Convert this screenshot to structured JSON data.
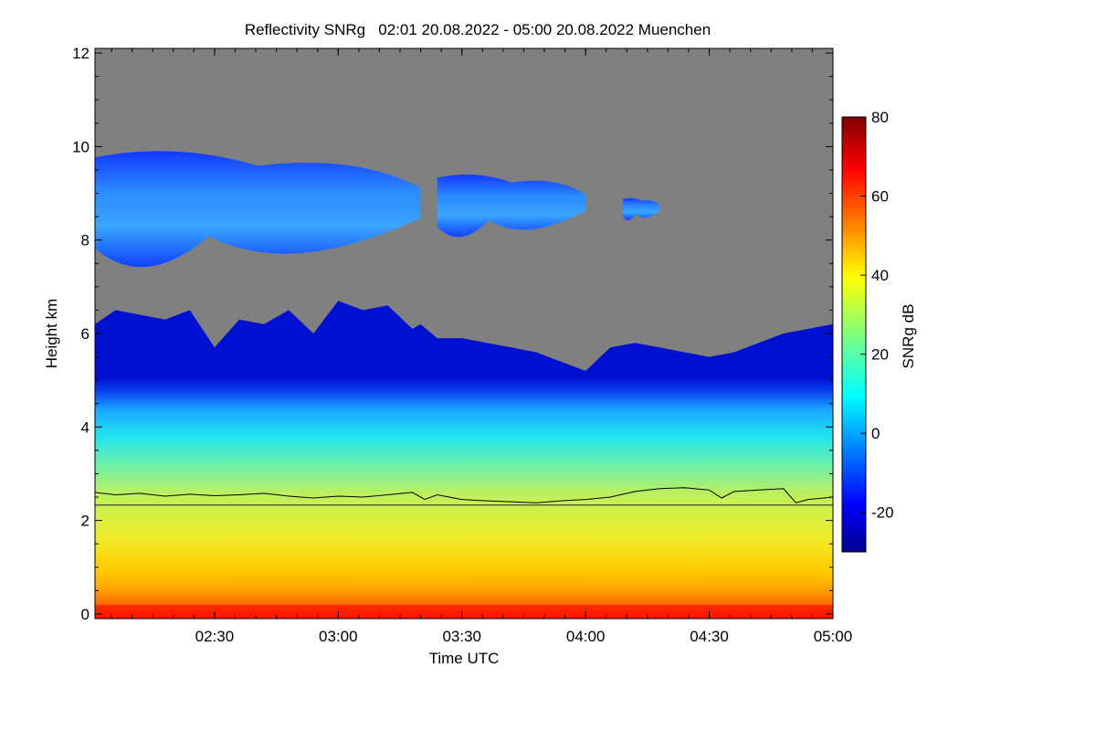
{
  "chart_data": {
    "type": "heatmap",
    "title": "Reflectivity SNRg   02:01 20.08.2022 - 05:00 20.08.2022 Muenchen",
    "xlabel": "Time UTC",
    "ylabel": "Height km",
    "x_range_hours": [
      2.0167,
      5.0
    ],
    "x_ticks": [
      {
        "value": 2.5,
        "label": "02:30"
      },
      {
        "value": 3.0,
        "label": "03:00"
      },
      {
        "value": 3.5,
        "label": "03:30"
      },
      {
        "value": 4.0,
        "label": "04:00"
      },
      {
        "value": 4.5,
        "label": "04:30"
      },
      {
        "value": 5.0,
        "label": "05:00"
      }
    ],
    "ylim": [
      -0.1,
      12.1
    ],
    "y_ticks": [
      {
        "value": 0,
        "label": "0"
      },
      {
        "value": 2,
        "label": "2"
      },
      {
        "value": 4,
        "label": "4"
      },
      {
        "value": 6,
        "label": "6"
      },
      {
        "value": 8,
        "label": "8"
      },
      {
        "value": 10,
        "label": "10"
      },
      {
        "value": 12,
        "label": "12"
      }
    ],
    "colorbar": {
      "label": "SNRg dB",
      "range": [
        -30,
        80
      ],
      "ticks": [
        {
          "value": 80,
          "label": "80"
        },
        {
          "value": 60,
          "label": "60"
        },
        {
          "value": 40,
          "label": "40"
        },
        {
          "value": 20,
          "label": "20"
        },
        {
          "value": 0,
          "label": "0"
        },
        {
          "value": -20,
          "label": "-20"
        }
      ]
    },
    "no_signal_color": "#808080",
    "cloud_top_profile": {
      "x": [
        2.0167,
        2.1,
        2.2,
        2.3,
        2.4,
        2.5,
        2.6,
        2.7,
        2.8,
        2.9,
        3.0,
        3.1,
        3.2,
        3.3,
        3.333,
        3.4,
        3.5,
        3.6,
        3.7,
        3.8,
        3.9,
        4.0,
        4.1,
        4.2,
        4.3,
        4.4,
        4.5,
        4.6,
        4.7,
        4.8,
        4.9,
        5.0
      ],
      "height_km": [
        6.2,
        6.5,
        6.4,
        6.3,
        6.5,
        5.7,
        6.3,
        6.2,
        6.5,
        6.0,
        6.7,
        6.5,
        6.6,
        6.1,
        6.2,
        5.9,
        5.9,
        5.8,
        5.7,
        5.6,
        5.4,
        5.2,
        5.7,
        5.8,
        5.7,
        5.6,
        5.5,
        5.6,
        5.8,
        6.0,
        6.1,
        6.2
      ]
    },
    "upper_cloud_layers": [
      {
        "x_start": 2.0167,
        "x_end": 3.333,
        "base_km": 7.3,
        "top_km": 9.9
      },
      {
        "x_start": 3.4,
        "x_end": 4.0,
        "base_km": 8.0,
        "top_km": 9.4
      },
      {
        "x_start": 4.15,
        "x_end": 4.3,
        "base_km": 8.4,
        "top_km": 8.9
      }
    ],
    "melting_layer_line": {
      "x": [
        2.0167,
        2.1,
        2.2,
        2.3,
        2.4,
        2.5,
        2.6,
        2.7,
        2.8,
        2.9,
        3.0,
        3.1,
        3.2,
        3.3,
        3.35,
        3.4,
        3.5,
        3.6,
        3.7,
        3.8,
        3.9,
        4.0,
        4.1,
        4.2,
        4.3,
        4.4,
        4.5,
        4.55,
        4.6,
        4.7,
        4.8,
        4.85,
        4.9,
        5.0
      ],
      "height_km": [
        2.6,
        2.55,
        2.58,
        2.52,
        2.56,
        2.53,
        2.55,
        2.58,
        2.52,
        2.48,
        2.52,
        2.5,
        2.55,
        2.6,
        2.45,
        2.55,
        2.45,
        2.42,
        2.4,
        2.38,
        2.42,
        2.45,
        2.5,
        2.62,
        2.68,
        2.7,
        2.65,
        2.48,
        2.62,
        2.65,
        2.68,
        2.38,
        2.45,
        2.5
      ]
    },
    "reference_line_km": 2.33
  }
}
